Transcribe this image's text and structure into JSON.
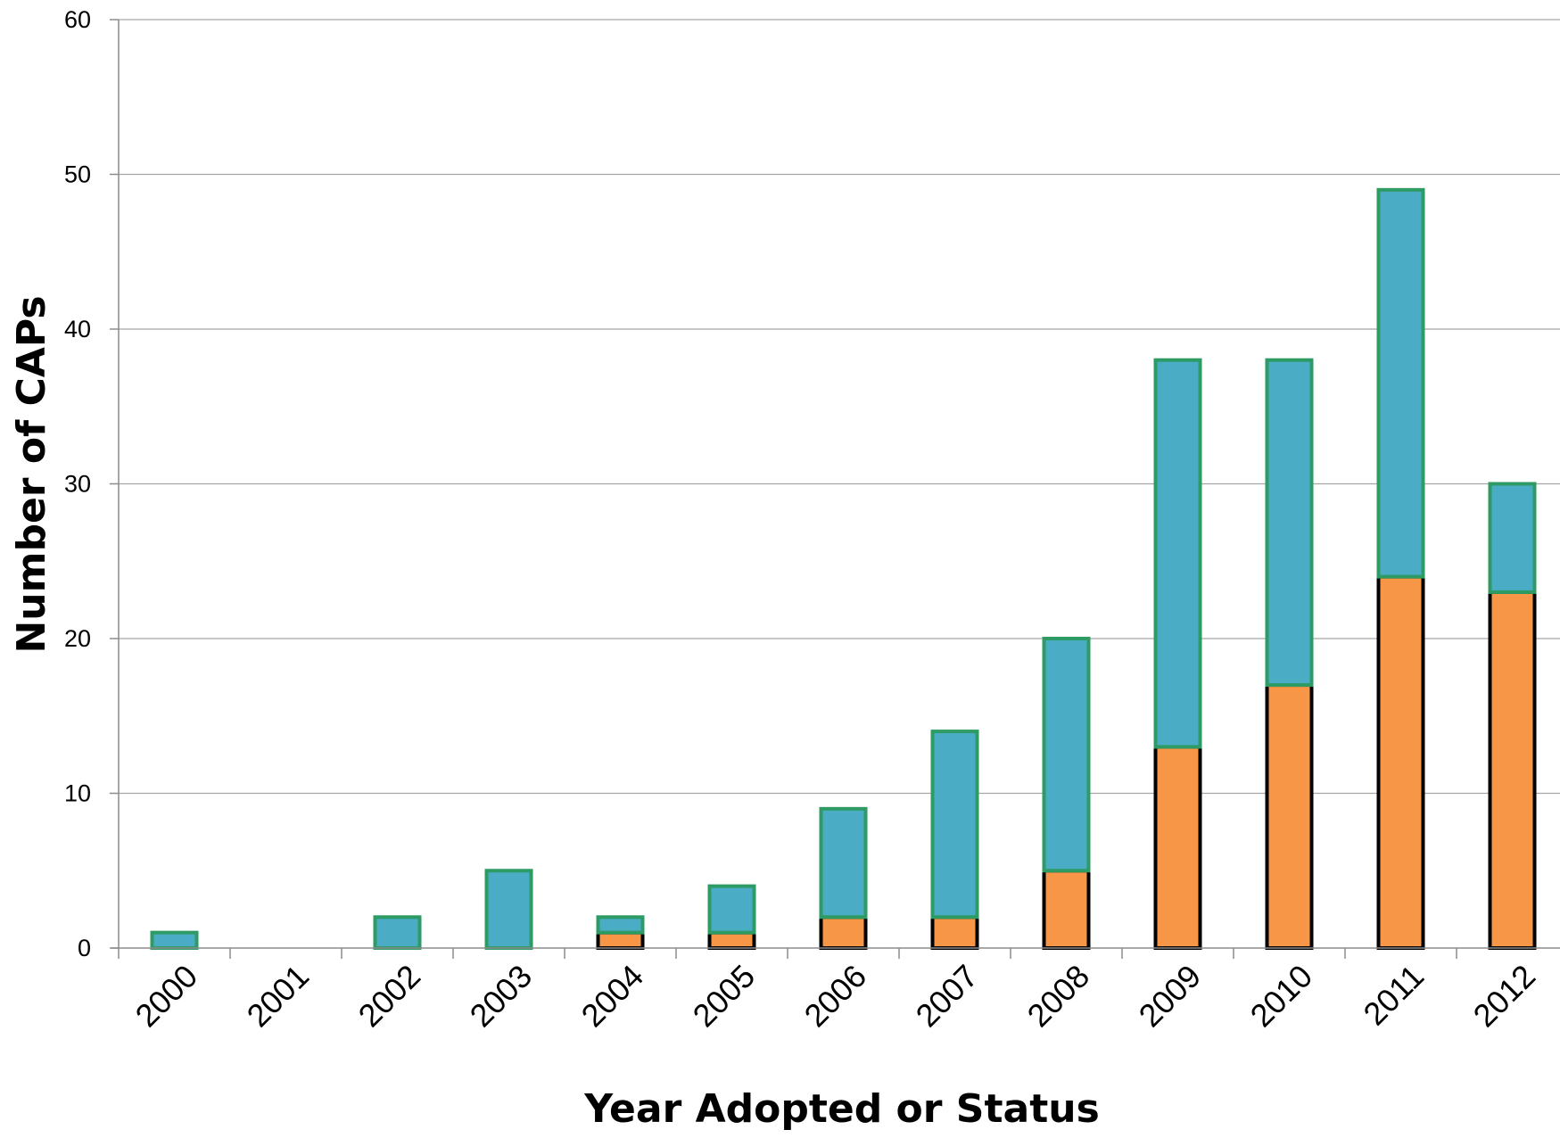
{
  "chart_data": {
    "type": "bar",
    "stacked": true,
    "title": "",
    "xlabel": "Year Adopted or Status",
    "ylabel": "Number of CAPs",
    "ylim": [
      0,
      60
    ],
    "yticks": [
      0,
      10,
      20,
      30,
      40,
      50,
      60
    ],
    "grid": true,
    "legend": "none",
    "categories": [
      "2000",
      "2001",
      "2002",
      "2003",
      "2004",
      "2005",
      "2006",
      "2007",
      "2008",
      "2009",
      "2010",
      "2011",
      "2012"
    ],
    "series": [
      {
        "values": [
          0,
          0,
          0,
          0,
          1,
          1,
          2,
          2,
          5,
          13,
          17,
          24,
          23
        ],
        "color": "#F79646",
        "stroke": "#000000"
      },
      {
        "values": [
          1,
          0,
          2,
          5,
          1,
          3,
          7,
          12,
          15,
          25,
          21,
          25,
          7
        ],
        "color": "#4BACC6",
        "stroke": "#2E9A64"
      }
    ]
  }
}
